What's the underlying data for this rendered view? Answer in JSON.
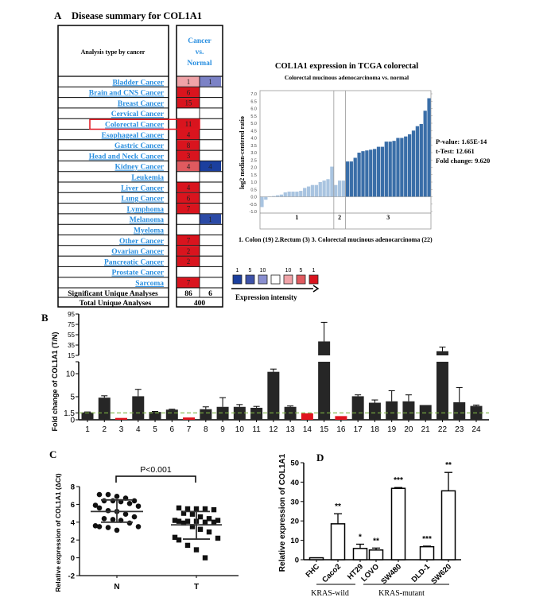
{
  "panel_labels": {
    "a": "A",
    "b": "B",
    "c": "C",
    "d": "D"
  },
  "panel_a": {
    "title": "Disease summary for COL1A1",
    "header_left": "Analysis type by cancer",
    "header_right": [
      "Cancer",
      "vs.",
      "Normal"
    ],
    "rows": [
      {
        "name": "Bladder Cancer",
        "up": "1",
        "up_color": "#f0a3a8",
        "down": "1",
        "down_color": "#7b82c6"
      },
      {
        "name": "Brain and CNS Cancer",
        "up": "6",
        "up_color": "#d9141e",
        "down": "",
        "down_color": ""
      },
      {
        "name": "Breast Cancer",
        "up": "15",
        "up_color": "#d9141e",
        "down": "",
        "down_color": ""
      },
      {
        "name": "Cervical Cancer",
        "up": "",
        "up_color": "",
        "down": "",
        "down_color": ""
      },
      {
        "name": "Colorectal Cancer",
        "up": "11",
        "up_color": "#d9141e",
        "down": "",
        "down_color": "",
        "highlighted": true
      },
      {
        "name": "Esophageal Cancer",
        "up": "4",
        "up_color": "#d9141e",
        "down": "",
        "down_color": ""
      },
      {
        "name": "Gastric Cancer",
        "up": "8",
        "up_color": "#d9141e",
        "down": "",
        "down_color": ""
      },
      {
        "name": "Head and Neck Cancer",
        "up": "3",
        "up_color": "#d9141e",
        "down": "",
        "down_color": ""
      },
      {
        "name": "Kidney Cancer",
        "up": "4",
        "up_color": "#e05a5f",
        "down": "4",
        "down_color": "#1b3f9e"
      },
      {
        "name": "Leukemia",
        "up": "",
        "up_color": "",
        "down": "",
        "down_color": ""
      },
      {
        "name": "Liver Cancer",
        "up": "4",
        "up_color": "#d9141e",
        "down": "",
        "down_color": ""
      },
      {
        "name": "Lung Cancer",
        "up": "6",
        "up_color": "#d9141e",
        "down": "",
        "down_color": ""
      },
      {
        "name": "Lymphoma",
        "up": "7",
        "up_color": "#d9141e",
        "down": "",
        "down_color": ""
      },
      {
        "name": "Melanoma",
        "up": "",
        "up_color": "",
        "down": "1",
        "down_color": "#2b4aa6"
      },
      {
        "name": "Myeloma",
        "up": "",
        "up_color": "",
        "down": "",
        "down_color": ""
      },
      {
        "name": "Other Cancer",
        "up": "7",
        "up_color": "#d9141e",
        "down": "",
        "down_color": ""
      },
      {
        "name": "Ovarian Cancer",
        "up": "2",
        "up_color": "#d9141e",
        "down": "",
        "down_color": ""
      },
      {
        "name": "Pancreatic Cancer",
        "up": "2",
        "up_color": "#d9141e",
        "down": "",
        "down_color": ""
      },
      {
        "name": "Prostate Cancer",
        "up": "",
        "up_color": "",
        "down": "",
        "down_color": ""
      },
      {
        "name": "Sarcoma",
        "up": "7",
        "up_color": "#d9141e",
        "down": "",
        "down_color": ""
      }
    ],
    "significant_label": "Significant Unique Analyses",
    "significant_up": "86",
    "significant_down": "6",
    "total_label": "Total Unique Analyses",
    "total": "400",
    "link_color": "#2a8fe0",
    "legend": {
      "labels": [
        "1",
        "5",
        "10",
        "",
        "10",
        "5",
        "1"
      ],
      "colors": [
        "#1b3f9e",
        "#3d52a8",
        "#8a8fd0",
        "#ffffff",
        "#f0a3a8",
        "#e05a5f",
        "#d9141e"
      ],
      "caption": "Expression intensity"
    }
  },
  "chart_data": [
    {
      "type": "bar",
      "title": "COL1A1 expression in TCGA colorectal",
      "subtitle": "Colorectal mucinous adenocarcinoma vs. normal",
      "ylabel": "log2 median-centered ratio",
      "ylim": [
        -1.0,
        7.0
      ],
      "yticks": [
        "7.0",
        "6.5",
        "6.0",
        "5.5",
        "5.0",
        "4.5",
        "4.0",
        "3.5",
        "3.0",
        "2.5",
        "2.0",
        "1.5",
        "1.0",
        "0.5",
        "0.0",
        "-0.5",
        "-1.0"
      ],
      "groups": [
        {
          "label": "1",
          "color": "#a9c4e0",
          "values": [
            -0.7,
            -0.2,
            0.0,
            0.05,
            0.1,
            0.15,
            0.3,
            0.35,
            0.35,
            0.35,
            0.4,
            0.6,
            0.7,
            0.8,
            0.8,
            1.0,
            1.1,
            1.2,
            2.05
          ]
        },
        {
          "label": "2",
          "color": "#a9c4e0",
          "values": [
            0.8,
            1.1,
            1.1
          ]
        },
        {
          "label": "3",
          "color": "#3a6ea8",
          "values": [
            2.4,
            2.4,
            2.65,
            3.0,
            3.1,
            3.15,
            3.2,
            3.25,
            3.4,
            3.4,
            3.75,
            3.75,
            3.8,
            4.0,
            4.0,
            4.1,
            4.25,
            4.5,
            4.8,
            4.95,
            5.85,
            6.7
          ]
        }
      ],
      "stats": [
        "P-value: 1.65E-14",
        "t-Test: 12.661",
        "Fold change: 9.620"
      ],
      "legend": "1. Colon (19)  2.Rectum (3)   3. Colorectal mucinous adenocarcinoma (22)"
    },
    {
      "type": "bar",
      "ylabel": "Fold change of COL1A1 (T/N)",
      "yticks_lower": [
        "0",
        "1.5",
        "5",
        "10"
      ],
      "yticks_upper": [
        "15",
        "35",
        "55",
        "75",
        "95"
      ],
      "ylim": [
        0,
        95
      ],
      "axis_break": [
        12.5,
        15
      ],
      "threshold": 1.5,
      "threshold_color": "#7cb342",
      "categories": [
        "1",
        "2",
        "3",
        "4",
        "5",
        "6",
        "7",
        "8",
        "9",
        "10",
        "11",
        "12",
        "13",
        "14",
        "15",
        "16",
        "17",
        "18",
        "19",
        "20",
        "21",
        "22",
        "23",
        "24"
      ],
      "values": [
        1.6,
        4.8,
        0.4,
        5.1,
        1.7,
        2.2,
        0.5,
        2.3,
        2.8,
        2.8,
        2.6,
        10.4,
        2.8,
        1.4,
        42,
        0.8,
        5.1,
        3.7,
        4.0,
        4.0,
        3.2,
        23,
        3.8,
        3.0
      ],
      "errors_upper": [
        1.7,
        5.2,
        0.4,
        6.6,
        1.8,
        2.3,
        0.5,
        2.8,
        4.8,
        3.3,
        2.9,
        11.0,
        3.0,
        1.4,
        79,
        0.8,
        5.4,
        4.3,
        6.3,
        5.4,
        3.2,
        31,
        7.0,
        3.2
      ],
      "colors": {
        "up": "#262626",
        "down": "#e0141e"
      },
      "down_indices": [
        3,
        7,
        14,
        16
      ]
    },
    {
      "type": "scatter",
      "ylabel": "Relative expression of COL1A1 (ΔCt)",
      "categories": [
        "N",
        "T"
      ],
      "ylim": [
        -2,
        8
      ],
      "yticks": [
        "8",
        "6",
        "4",
        "2",
        "0",
        "-2"
      ],
      "series": [
        {
          "values": [
            7.1,
            7.1,
            6.9,
            6.7,
            6.4,
            6.4,
            6.4,
            6.3,
            6.1,
            5.9,
            5.8,
            5.6,
            5.3,
            5.2,
            4.9,
            4.6,
            4.4,
            4.3,
            4.2,
            3.9,
            3.6,
            3.5,
            3.5,
            3.4,
            3.1
          ],
          "mean": 5.2,
          "sd_low": 4.0,
          "sd_high": 6.5,
          "marker": "circle"
        },
        {
          "values": [
            5.6,
            5.5,
            5.5,
            5.5,
            5.4,
            5.0,
            4.9,
            4.6,
            4.4,
            4.2,
            4.2,
            4.1,
            4.1,
            4.1,
            4.0,
            4.0,
            3.9,
            3.5,
            3.2,
            2.9,
            2.3,
            2.2,
            2.0,
            1.4,
            0.9,
            0.0
          ],
          "mean": 3.7,
          "sd_low": 2.1,
          "sd_high": 5.2,
          "marker": "square"
        }
      ],
      "annotation": "P<0.001"
    },
    {
      "type": "bar",
      "ylabel": "Relative expression of COL1A1",
      "ylim": [
        0,
        50
      ],
      "yticks": [
        "0",
        "10",
        "20",
        "30",
        "40",
        "50"
      ],
      "categories": [
        "FHC",
        "Caco2",
        "HT29",
        "LOVO",
        "SW480",
        "DLD-1",
        "SW620"
      ],
      "values": [
        1.0,
        18.5,
        5.8,
        5.0,
        36.8,
        6.7,
        35.5
      ],
      "errors_upper": [
        1.0,
        23.7,
        8.0,
        6.0,
        37.2,
        7.0,
        45.0
      ],
      "significance": [
        "",
        "**",
        "*",
        "**",
        "***",
        "***",
        "**"
      ],
      "groups": [
        {
          "label": "KRAS-wild"
        },
        {
          "label": "KRAS-mutant"
        }
      ]
    }
  ]
}
